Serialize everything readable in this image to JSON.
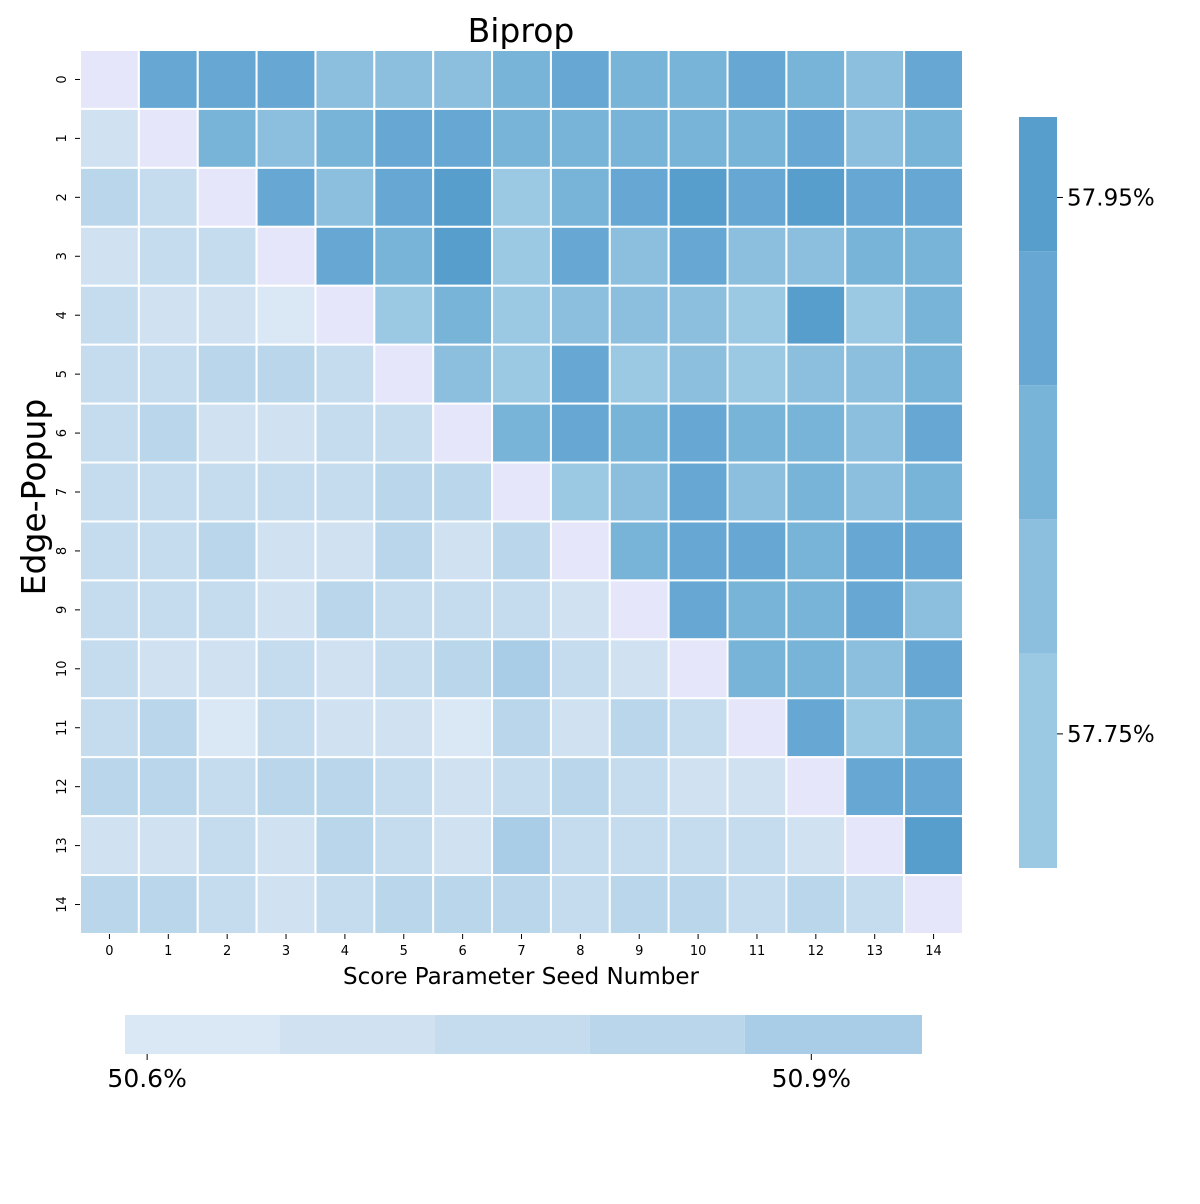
{
  "chart_data": {
    "type": "heatmap",
    "title": "Biprop",
    "xlabel": "Score Parameter Seed Number",
    "ylabel": "Edge-Popup",
    "x_ticks": [
      "0",
      "1",
      "2",
      "3",
      "4",
      "5",
      "6",
      "7",
      "8",
      "9",
      "10",
      "11",
      "12",
      "13",
      "14"
    ],
    "y_ticks": [
      "0",
      "1",
      "2",
      "3",
      "4",
      "5",
      "6",
      "7",
      "8",
      "9",
      "10",
      "11",
      "12",
      "13",
      "14"
    ],
    "diagonal_color": "#e6e6fa",
    "upper_triangle": {
      "series_name": "Biprop",
      "colorbar_position": "right",
      "colorbar_tick_labels": [
        "57.95%",
        "57.75%"
      ],
      "colorbar_ticks": [
        57.95,
        57.75
      ],
      "range": [
        57.7,
        57.98
      ],
      "bins": [
        {
          "from": 57.7,
          "to": 57.78,
          "color": "#9bc8e2"
        },
        {
          "from": 57.78,
          "to": 57.83,
          "color": "#8cbedd"
        },
        {
          "from": 57.83,
          "to": 57.88,
          "color": "#78b3d8"
        },
        {
          "from": 57.88,
          "to": 57.93,
          "color": "#66a8d3"
        },
        {
          "from": 57.93,
          "to": 57.98,
          "color": "#579ecd"
        }
      ]
    },
    "lower_triangle": {
      "series_name": "Edge-Popup",
      "colorbar_position": "bottom",
      "colorbar_tick_labels": [
        "50.6%",
        "50.9%"
      ],
      "colorbar_ticks": [
        50.6,
        50.9
      ],
      "range": [
        50.59,
        50.95
      ],
      "bins": [
        {
          "from": 50.59,
          "to": 50.66,
          "color": "#dae7f5"
        },
        {
          "from": 50.66,
          "to": 50.73,
          "color": "#d0e2f2"
        },
        {
          "from": 50.73,
          "to": 50.8,
          "color": "#c5dcef"
        },
        {
          "from": 50.8,
          "to": 50.87,
          "color": "#bad6ea"
        },
        {
          "from": 50.87,
          "to": 50.95,
          "color": "#a9cde6"
        }
      ]
    },
    "values": [
      [
        null,
        57.9,
        57.92,
        57.92,
        57.81,
        57.81,
        57.81,
        57.86,
        57.91,
        57.86,
        57.86,
        57.91,
        57.86,
        57.81,
        57.9
      ],
      [
        50.7,
        null,
        57.86,
        57.81,
        57.86,
        57.91,
        57.91,
        57.86,
        57.86,
        57.86,
        57.86,
        57.86,
        57.91,
        57.81,
        57.86
      ],
      [
        50.84,
        50.77,
        null,
        57.91,
        57.81,
        57.91,
        57.96,
        57.76,
        57.86,
        57.91,
        57.96,
        57.91,
        57.96,
        57.91,
        57.91
      ],
      [
        50.7,
        50.77,
        50.77,
        null,
        57.91,
        57.86,
        57.96,
        57.76,
        57.91,
        57.81,
        57.91,
        57.81,
        57.81,
        57.86,
        57.86
      ],
      [
        50.77,
        50.7,
        50.7,
        50.63,
        null,
        57.76,
        57.86,
        57.76,
        57.81,
        57.81,
        57.81,
        57.76,
        57.96,
        57.76,
        57.86
      ],
      [
        50.77,
        50.77,
        50.84,
        50.84,
        50.77,
        null,
        57.81,
        57.76,
        57.91,
        57.76,
        57.81,
        57.76,
        57.81,
        57.81,
        57.86
      ],
      [
        50.77,
        50.84,
        50.7,
        50.7,
        50.77,
        50.77,
        null,
        57.86,
        57.91,
        57.86,
        57.91,
        57.86,
        57.86,
        57.81,
        57.91
      ],
      [
        50.77,
        50.77,
        50.77,
        50.77,
        50.77,
        50.84,
        50.84,
        null,
        57.76,
        57.81,
        57.91,
        57.81,
        57.86,
        57.81,
        57.86
      ],
      [
        50.77,
        50.77,
        50.84,
        50.7,
        50.7,
        50.84,
        50.7,
        50.84,
        null,
        57.86,
        57.91,
        57.91,
        57.86,
        57.91,
        57.91
      ],
      [
        50.77,
        50.77,
        50.77,
        50.7,
        50.84,
        50.77,
        50.77,
        50.77,
        50.7,
        null,
        57.91,
        57.86,
        57.86,
        57.91,
        57.81
      ],
      [
        50.77,
        50.7,
        50.7,
        50.77,
        50.7,
        50.77,
        50.84,
        50.9,
        50.77,
        50.7,
        null,
        57.86,
        57.86,
        57.81,
        57.91
      ],
      [
        50.77,
        50.84,
        50.63,
        50.77,
        50.7,
        50.7,
        50.63,
        50.84,
        50.7,
        50.84,
        50.77,
        null,
        57.91,
        57.76,
        57.86
      ],
      [
        50.84,
        50.84,
        50.77,
        50.84,
        50.84,
        50.77,
        50.7,
        50.77,
        50.84,
        50.77,
        50.7,
        50.7,
        null,
        57.91,
        57.91
      ],
      [
        50.7,
        50.7,
        50.77,
        50.7,
        50.84,
        50.77,
        50.7,
        50.9,
        50.77,
        50.77,
        50.77,
        50.77,
        50.7,
        null,
        57.96
      ],
      [
        50.84,
        50.84,
        50.77,
        50.7,
        50.77,
        50.84,
        50.84,
        50.84,
        50.77,
        50.84,
        50.84,
        50.77,
        50.84,
        50.77,
        null
      ]
    ]
  }
}
